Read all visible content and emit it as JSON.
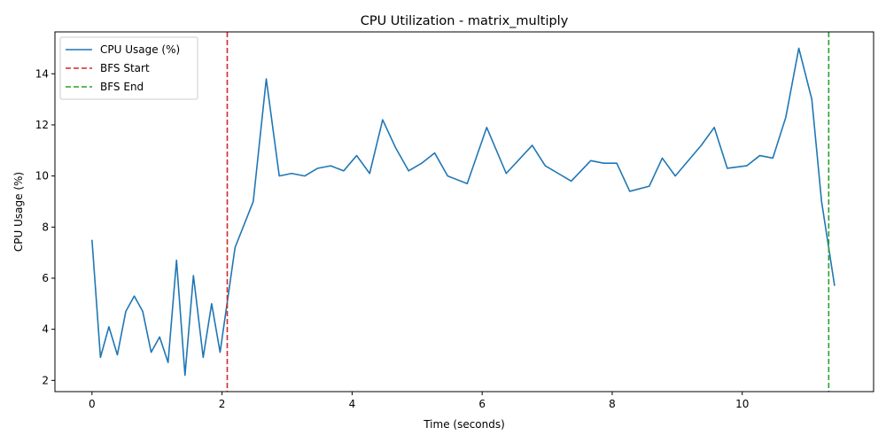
{
  "chart_data": {
    "type": "line",
    "title": "CPU Utilization - matrix_multiply",
    "xlabel": "Time (seconds)",
    "ylabel": "CPU Usage (%)",
    "xlim": [
      -0.57,
      12.02
    ],
    "ylim": [
      1.56,
      15.64
    ],
    "xticks": [
      0,
      2,
      4,
      6,
      8,
      10
    ],
    "yticks": [
      2,
      4,
      6,
      8,
      10,
      12,
      14
    ],
    "grid": false,
    "legend_position": "upper-left",
    "series": [
      {
        "name": "CPU Usage (%)",
        "color": "#1f77b4",
        "style": "solid",
        "x": [
          0.0,
          0.13,
          0.26,
          0.39,
          0.52,
          0.65,
          0.78,
          0.91,
          1.04,
          1.17,
          1.3,
          1.43,
          1.56,
          1.71,
          1.84,
          1.97,
          2.2,
          2.48,
          2.68,
          2.88,
          3.07,
          3.27,
          3.47,
          3.67,
          3.87,
          4.07,
          4.27,
          4.47,
          4.67,
          4.87,
          5.07,
          5.27,
          5.47,
          5.77,
          6.07,
          6.37,
          6.77,
          6.97,
          7.37,
          7.67,
          7.87,
          8.07,
          8.27,
          8.57,
          8.77,
          8.97,
          9.37,
          9.57,
          9.77,
          10.07,
          10.27,
          10.47,
          10.67,
          10.87,
          11.07,
          11.22,
          11.42
        ],
        "y": [
          7.5,
          2.9,
          4.1,
          3.0,
          4.7,
          5.3,
          4.7,
          3.1,
          3.7,
          2.7,
          6.7,
          2.2,
          6.1,
          2.9,
          5.0,
          3.1,
          7.2,
          9.0,
          13.8,
          10.0,
          10.1,
          10.0,
          10.3,
          10.4,
          10.2,
          10.8,
          10.1,
          12.2,
          11.1,
          10.2,
          10.5,
          10.9,
          10.0,
          9.7,
          11.9,
          10.1,
          11.2,
          10.4,
          9.8,
          10.6,
          10.5,
          10.5,
          9.4,
          9.6,
          10.7,
          10.0,
          11.2,
          11.9,
          10.3,
          10.4,
          10.8,
          10.7,
          12.3,
          15.0,
          13.0,
          9.0,
          5.7
        ]
      }
    ],
    "vlines": [
      {
        "name": "BFS Start",
        "x": 2.08,
        "color": "#d62728",
        "style": "dashed"
      },
      {
        "name": "BFS End",
        "x": 11.33,
        "color": "#2ca02c",
        "style": "dashed"
      }
    ]
  }
}
